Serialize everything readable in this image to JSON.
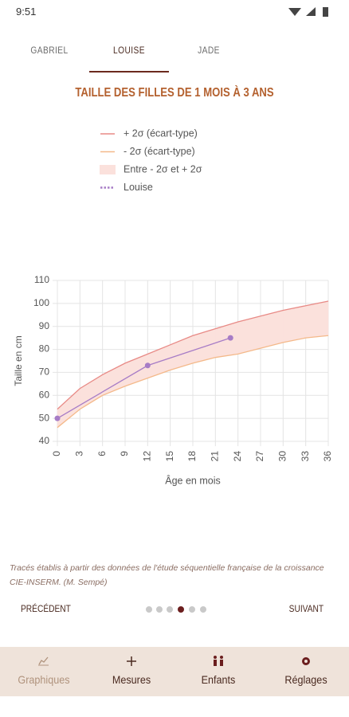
{
  "status_bar": {
    "time": "9:51"
  },
  "tabs": [
    "GABRIEL",
    "LOUISE",
    "JADE"
  ],
  "chart_data": {
    "type": "line",
    "title": "TAILLE DES FILLES DE 1 MOIS À 3 ANS",
    "x_label": "Âge en mois",
    "y_label": "Taille en cm",
    "x": [
      0,
      3,
      6,
      9,
      12,
      15,
      18,
      21,
      24,
      27,
      30,
      33,
      36
    ],
    "series": [
      {
        "name": "+ 2σ (écart-type)",
        "color": "#e88a86",
        "values": [
          54,
          63,
          69,
          74,
          78,
          82,
          86,
          89,
          92,
          94.5,
          97,
          99,
          101
        ]
      },
      {
        "name": "- 2σ (écart-type)",
        "color": "#f4b98a",
        "values": [
          46,
          54,
          60,
          64,
          67.5,
          71,
          74,
          76.5,
          78,
          80.5,
          83,
          85,
          86
        ]
      },
      {
        "name": "Louise",
        "color": "#a77cc6",
        "x": [
          0,
          12,
          23
        ],
        "values": [
          50,
          73,
          85
        ]
      }
    ],
    "band": {
      "name": "Entre - 2σ et + 2σ",
      "color": "#fbe1dc"
    },
    "xlim": [
      0,
      36
    ],
    "xticks": [
      0,
      3,
      6,
      9,
      12,
      15,
      18,
      21,
      24,
      27,
      30,
      33,
      36
    ],
    "ylim": [
      40,
      110
    ],
    "yticks": [
      40,
      50,
      60,
      70,
      80,
      90,
      100,
      110
    ],
    "grid": true
  },
  "footnote": "Tracés établis à partir des données de l'étude séquentielle française de la croissance CIE-INSERM. (M. Sempé)",
  "pager": {
    "previous": "PRÉCÉDENT",
    "next": "SUIVANT"
  },
  "bottom_nav": [
    "Graphiques",
    "Mesures",
    "Enfants",
    "Réglages"
  ]
}
